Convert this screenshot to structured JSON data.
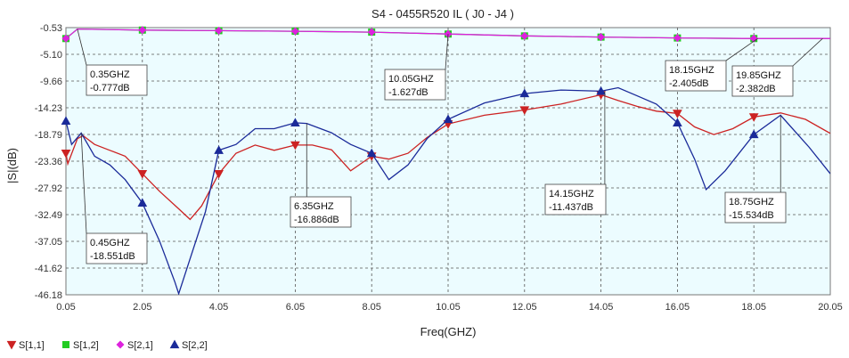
{
  "chart_data": {
    "type": "line",
    "title": "S4 - 0455R520  IL  ( J0 - J4 )",
    "xlabel": "Freq(GHZ)",
    "ylabel": "|S|(dB)",
    "xlim": [
      0.05,
      20.05
    ],
    "ylim": [
      -46.18,
      -0.53
    ],
    "x_ticks": [
      "0.05",
      "2.05",
      "4.05",
      "6.05",
      "8.05",
      "10.05",
      "12.05",
      "14.05",
      "16.05",
      "18.05",
      "20.05"
    ],
    "y_ticks": [
      "-0.53",
      "-5.10",
      "-9.66",
      "-14.23",
      "-18.79",
      "-23.36",
      "-27.92",
      "-32.49",
      "-37.05",
      "-41.62",
      "-46.18"
    ],
    "grid": true,
    "legend_position": "bottom-left",
    "plot_background": "#ecfcff",
    "series": [
      {
        "name": "S[1,1]",
        "color": "#cc2222",
        "marker": "triangle-down",
        "marker_x": [
          0.05,
          2.05,
          4.05,
          6.05,
          8.05,
          10.05,
          12.05,
          14.05,
          16.05,
          18.05
        ],
        "points": [
          [
            0.05,
            -22
          ],
          [
            0.1,
            -23.8
          ],
          [
            0.35,
            -19.5
          ],
          [
            0.5,
            -19
          ],
          [
            0.8,
            -20.5
          ],
          [
            1.2,
            -21.5
          ],
          [
            1.6,
            -22.5
          ],
          [
            2.05,
            -25.5
          ],
          [
            2.5,
            -28.5
          ],
          [
            3.0,
            -31.5
          ],
          [
            3.3,
            -33.3
          ],
          [
            3.6,
            -31
          ],
          [
            4.05,
            -25.5
          ],
          [
            4.5,
            -22
          ],
          [
            5.0,
            -20.6
          ],
          [
            5.5,
            -21.5
          ],
          [
            6.05,
            -20.6
          ],
          [
            6.5,
            -20.6
          ],
          [
            7.0,
            -21.4
          ],
          [
            7.5,
            -25
          ],
          [
            8.05,
            -22.5
          ],
          [
            8.5,
            -23
          ],
          [
            9.0,
            -22
          ],
          [
            9.5,
            -19.3
          ],
          [
            10.05,
            -17
          ],
          [
            11.0,
            -15.5
          ],
          [
            12.05,
            -14.6
          ],
          [
            13.0,
            -13.6
          ],
          [
            14.05,
            -12
          ],
          [
            14.5,
            -13
          ],
          [
            15.0,
            -14
          ],
          [
            15.5,
            -14.8
          ],
          [
            16.05,
            -15.2
          ],
          [
            16.5,
            -17.5
          ],
          [
            17.0,
            -18.8
          ],
          [
            17.5,
            -17.8
          ],
          [
            18.05,
            -15.8
          ],
          [
            18.75,
            -15.1
          ],
          [
            19.4,
            -16.2
          ],
          [
            20.05,
            -18.6
          ]
        ]
      },
      {
        "name": "S[1,2]",
        "color": "#22cc22",
        "marker": "square",
        "marker_x": [
          0.05,
          2.05,
          4.05,
          6.05,
          8.05,
          10.05,
          12.05,
          14.05,
          16.05,
          18.05
        ],
        "points": [
          [
            0.05,
            -2.4
          ],
          [
            0.35,
            -0.78
          ],
          [
            2.05,
            -0.95
          ],
          [
            4.05,
            -1.05
          ],
          [
            6.05,
            -1.15
          ],
          [
            8.05,
            -1.3
          ],
          [
            10.05,
            -1.63
          ],
          [
            12.05,
            -1.95
          ],
          [
            14.05,
            -2.15
          ],
          [
            16.05,
            -2.3
          ],
          [
            18.15,
            -2.4
          ],
          [
            19.85,
            -2.38
          ],
          [
            20.05,
            -2.4
          ]
        ]
      },
      {
        "name": "S[2,1]",
        "color": "#dd22dd",
        "marker": "diamond",
        "marker_x": [
          0.05,
          2.05,
          4.05,
          6.05,
          8.05,
          10.05,
          12.05,
          14.05,
          16.05,
          18.05
        ],
        "points": [
          [
            0.05,
            -2.4
          ],
          [
            0.35,
            -0.78
          ],
          [
            2.05,
            -0.95
          ],
          [
            4.05,
            -1.05
          ],
          [
            6.05,
            -1.15
          ],
          [
            8.05,
            -1.3
          ],
          [
            10.05,
            -1.63
          ],
          [
            12.05,
            -1.95
          ],
          [
            14.05,
            -2.15
          ],
          [
            16.05,
            -2.3
          ],
          [
            18.15,
            -2.4
          ],
          [
            19.85,
            -2.38
          ],
          [
            20.05,
            -2.4
          ]
        ]
      },
      {
        "name": "S[2,2]",
        "color": "#1a2a99",
        "marker": "triangle-up",
        "marker_x": [
          0.05,
          2.05,
          4.05,
          6.05,
          8.05,
          10.05,
          12.05,
          14.05,
          16.05,
          18.05
        ],
        "points": [
          [
            0.05,
            -16.5
          ],
          [
            0.2,
            -20.5
          ],
          [
            0.45,
            -18.55
          ],
          [
            0.8,
            -22.5
          ],
          [
            1.2,
            -24
          ],
          [
            1.6,
            -26.5
          ],
          [
            2.05,
            -30.5
          ],
          [
            2.5,
            -37
          ],
          [
            2.9,
            -44
          ],
          [
            3.0,
            -46
          ],
          [
            3.3,
            -40
          ],
          [
            3.7,
            -32
          ],
          [
            4.05,
            -21.5
          ],
          [
            4.5,
            -20.5
          ],
          [
            5.0,
            -17.8
          ],
          [
            5.5,
            -17.8
          ],
          [
            6.05,
            -16.8
          ],
          [
            6.35,
            -16.9
          ],
          [
            7.0,
            -18.5
          ],
          [
            7.5,
            -20.5
          ],
          [
            8.05,
            -22
          ],
          [
            8.5,
            -26.5
          ],
          [
            9.0,
            -24
          ],
          [
            9.5,
            -19.5
          ],
          [
            10.05,
            -16.2
          ],
          [
            11.0,
            -13.4
          ],
          [
            12.05,
            -11.8
          ],
          [
            13.0,
            -11.2
          ],
          [
            14.05,
            -11.4
          ],
          [
            14.5,
            -10.8
          ],
          [
            15.0,
            -12.2
          ],
          [
            15.5,
            -13.6
          ],
          [
            16.05,
            -16.8
          ],
          [
            16.5,
            -23
          ],
          [
            16.8,
            -28.2
          ],
          [
            17.3,
            -25
          ],
          [
            18.05,
            -18.8
          ],
          [
            18.75,
            -15.5
          ],
          [
            19.5,
            -21
          ],
          [
            20.05,
            -25.5
          ]
        ]
      }
    ],
    "annotations": [
      {
        "lines": [
          "0.35GHZ",
          "-0.777dB"
        ],
        "x": 0.35,
        "y": -0.777
      },
      {
        "lines": [
          "0.45GHZ",
          "-18.551dB"
        ],
        "x": 0.45,
        "y": -18.551
      },
      {
        "lines": [
          "6.35GHZ",
          "-16.886dB"
        ],
        "x": 6.35,
        "y": -16.886
      },
      {
        "lines": [
          "10.05GHZ",
          "-1.627dB"
        ],
        "x": 10.05,
        "y": -1.627
      },
      {
        "lines": [
          "14.15GHZ",
          "-11.437dB"
        ],
        "x": 14.15,
        "y": -11.437
      },
      {
        "lines": [
          "18.15GHZ",
          "-2.405dB"
        ],
        "x": 18.15,
        "y": -2.405
      },
      {
        "lines": [
          "18.75GHZ",
          "-15.534dB"
        ],
        "x": 18.75,
        "y": -15.534
      },
      {
        "lines": [
          "19.85GHZ",
          "-2.382dB"
        ],
        "x": 19.85,
        "y": -2.382
      }
    ]
  }
}
